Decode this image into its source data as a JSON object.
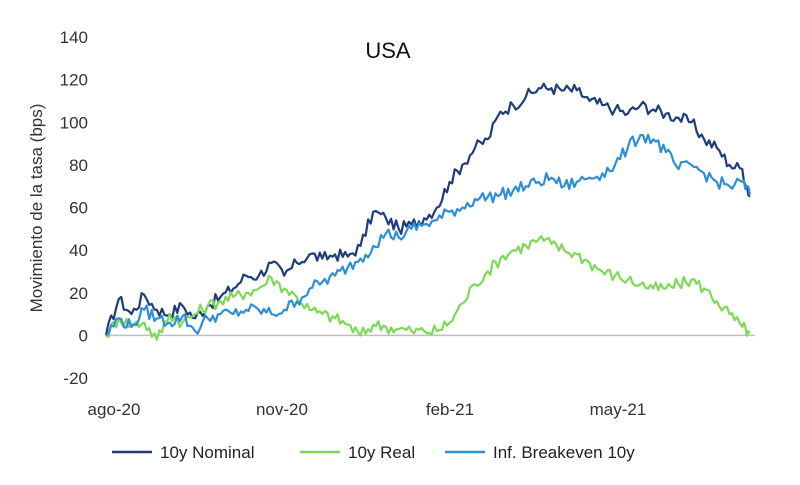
{
  "chart_data": {
    "type": "line",
    "title": "USA",
    "xlabel": "",
    "ylabel": "Movimiento de la tasa (bps)",
    "ylim": [
      -20,
      140
    ],
    "yticks": [
      -20,
      0,
      20,
      40,
      60,
      80,
      100,
      120,
      140
    ],
    "xlim": [
      0,
      255
    ],
    "xticks": [
      {
        "pos": 0,
        "label": "ago-20"
      },
      {
        "pos": 66,
        "label": "nov-20"
      },
      {
        "pos": 132,
        "label": "feb-21"
      },
      {
        "pos": 198,
        "label": "may-21"
      }
    ],
    "grid": false,
    "legend_position": "bottom",
    "series": [
      {
        "name": "10y Nominal",
        "color": "#1f3d7a",
        "points": [
          [
            0,
            0
          ],
          [
            5,
            17
          ],
          [
            10,
            10
          ],
          [
            15,
            19
          ],
          [
            20,
            12
          ],
          [
            25,
            10
          ],
          [
            30,
            14
          ],
          [
            35,
            8
          ],
          [
            40,
            14
          ],
          [
            45,
            18
          ],
          [
            50,
            22
          ],
          [
            55,
            28
          ],
          [
            60,
            28
          ],
          [
            65,
            34
          ],
          [
            70,
            28
          ],
          [
            75,
            34
          ],
          [
            80,
            38
          ],
          [
            85,
            36
          ],
          [
            90,
            38
          ],
          [
            95,
            37
          ],
          [
            100,
            42
          ],
          [
            105,
            58
          ],
          [
            110,
            55
          ],
          [
            115,
            50
          ],
          [
            120,
            52
          ],
          [
            125,
            55
          ],
          [
            130,
            60
          ],
          [
            135,
            72
          ],
          [
            140,
            80
          ],
          [
            145,
            88
          ],
          [
            150,
            92
          ],
          [
            155,
            105
          ],
          [
            160,
            108
          ],
          [
            165,
            112
          ],
          [
            170,
            116
          ],
          [
            175,
            116
          ],
          [
            180,
            115
          ],
          [
            185,
            115
          ],
          [
            190,
            110
          ],
          [
            195,
            108
          ],
          [
            200,
            106
          ],
          [
            205,
            104
          ],
          [
            210,
            108
          ],
          [
            215,
            106
          ],
          [
            220,
            104
          ],
          [
            225,
            102
          ],
          [
            230,
            100
          ],
          [
            235,
            92
          ],
          [
            240,
            88
          ],
          [
            245,
            80
          ],
          [
            250,
            78
          ],
          [
            253,
            65
          ]
        ]
      },
      {
        "name": "10y Real",
        "color": "#7ed957",
        "points": [
          [
            0,
            0
          ],
          [
            5,
            8
          ],
          [
            10,
            5
          ],
          [
            15,
            6
          ],
          [
            20,
            -2
          ],
          [
            25,
            10
          ],
          [
            30,
            6
          ],
          [
            35,
            10
          ],
          [
            40,
            14
          ],
          [
            45,
            16
          ],
          [
            50,
            18
          ],
          [
            55,
            20
          ],
          [
            60,
            22
          ],
          [
            65,
            27
          ],
          [
            70,
            22
          ],
          [
            75,
            18
          ],
          [
            80,
            12
          ],
          [
            85,
            10
          ],
          [
            90,
            8
          ],
          [
            95,
            5
          ],
          [
            100,
            0
          ],
          [
            105,
            5
          ],
          [
            110,
            4
          ],
          [
            115,
            3
          ],
          [
            120,
            2
          ],
          [
            125,
            2
          ],
          [
            130,
            2
          ],
          [
            135,
            6
          ],
          [
            140,
            15
          ],
          [
            145,
            24
          ],
          [
            150,
            30
          ],
          [
            155,
            36
          ],
          [
            160,
            40
          ],
          [
            165,
            42
          ],
          [
            170,
            45
          ],
          [
            175,
            43
          ],
          [
            180,
            40
          ],
          [
            185,
            38
          ],
          [
            190,
            34
          ],
          [
            195,
            30
          ],
          [
            200,
            28
          ],
          [
            205,
            26
          ],
          [
            210,
            24
          ],
          [
            215,
            22
          ],
          [
            220,
            22
          ],
          [
            225,
            24
          ],
          [
            230,
            26
          ],
          [
            235,
            22
          ],
          [
            240,
            16
          ],
          [
            245,
            10
          ],
          [
            250,
            4
          ],
          [
            253,
            1
          ]
        ]
      },
      {
        "name": "Inf. Breakeven 10y",
        "color": "#2f8fd6",
        "points": [
          [
            0,
            0
          ],
          [
            5,
            8
          ],
          [
            10,
            4
          ],
          [
            15,
            12
          ],
          [
            20,
            8
          ],
          [
            25,
            6
          ],
          [
            30,
            9
          ],
          [
            35,
            2
          ],
          [
            40,
            8
          ],
          [
            45,
            10
          ],
          [
            50,
            10
          ],
          [
            55,
            12
          ],
          [
            60,
            12
          ],
          [
            65,
            10
          ],
          [
            70,
            12
          ],
          [
            75,
            16
          ],
          [
            80,
            22
          ],
          [
            85,
            25
          ],
          [
            90,
            28
          ],
          [
            95,
            32
          ],
          [
            100,
            36
          ],
          [
            105,
            42
          ],
          [
            110,
            48
          ],
          [
            115,
            46
          ],
          [
            120,
            50
          ],
          [
            125,
            52
          ],
          [
            130,
            54
          ],
          [
            135,
            58
          ],
          [
            140,
            60
          ],
          [
            145,
            64
          ],
          [
            150,
            65
          ],
          [
            155,
            66
          ],
          [
            160,
            68
          ],
          [
            165,
            70
          ],
          [
            170,
            72
          ],
          [
            175,
            74
          ],
          [
            180,
            70
          ],
          [
            185,
            72
          ],
          [
            190,
            74
          ],
          [
            195,
            76
          ],
          [
            200,
            80
          ],
          [
            205,
            88
          ],
          [
            210,
            94
          ],
          [
            215,
            92
          ],
          [
            220,
            86
          ],
          [
            225,
            78
          ],
          [
            230,
            80
          ],
          [
            235,
            76
          ],
          [
            240,
            72
          ],
          [
            245,
            70
          ],
          [
            250,
            72
          ],
          [
            253,
            66
          ]
        ]
      }
    ]
  }
}
